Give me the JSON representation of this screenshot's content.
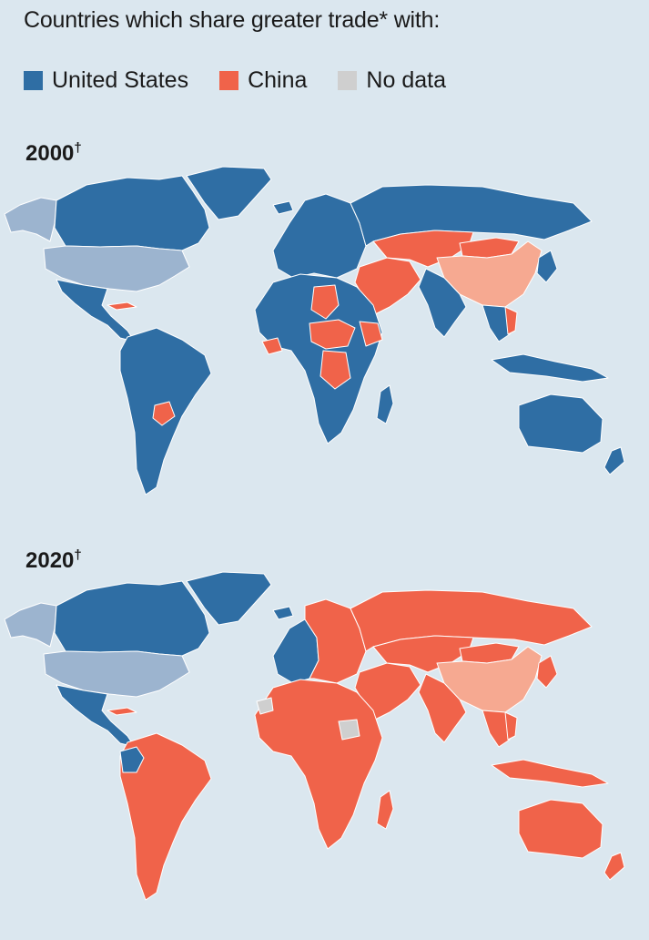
{
  "title": "Countries which share greater trade* with:",
  "legend": [
    {
      "label": "United States",
      "color": "#2f6ea4"
    },
    {
      "label": "China",
      "color": "#f0634a"
    },
    {
      "label": "No data",
      "color": "#cfcfcf"
    }
  ],
  "colors": {
    "united_states": "#2f6ea4",
    "china": "#f0634a",
    "us_itself": "#9cb4cf",
    "china_itself": "#f6a991",
    "no_data": "#cfcfcf",
    "background": "#dbe7ef"
  },
  "panels": [
    {
      "year": "2000",
      "mark": "†"
    },
    {
      "year": "2020",
      "mark": "†"
    }
  ]
}
